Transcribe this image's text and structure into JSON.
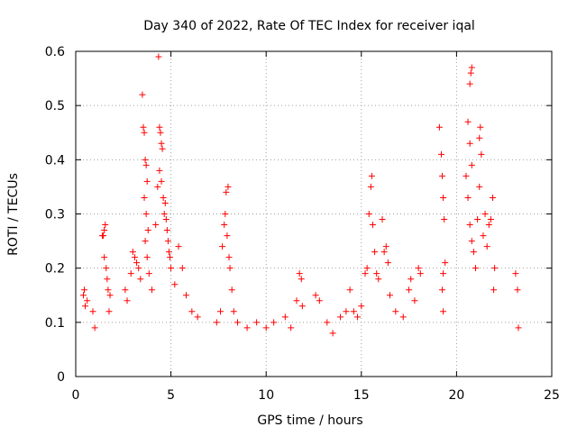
{
  "chart_data": {
    "type": "scatter",
    "title": "Day 340 of 2022, Rate Of TEC Index for receiver iqal",
    "xlabel": "GPS time / hours",
    "ylabel": "ROTI / TECUs",
    "xlim": [
      0,
      25
    ],
    "ylim": [
      0,
      0.6
    ],
    "xticks": [
      0,
      5,
      10,
      15,
      20,
      25
    ],
    "yticks": [
      0,
      0.1,
      0.2,
      0.3,
      0.4,
      0.5,
      0.6
    ],
    "xtick_labels": [
      "0",
      "5",
      "10",
      "15",
      "20",
      "25"
    ],
    "ytick_labels": [
      "0",
      "0.1",
      "0.2",
      "0.3",
      "0.4",
      "0.5",
      "0.6"
    ],
    "grid": true,
    "marker": "+",
    "marker_color": "#ff0000",
    "series": [
      {
        "points": [
          [
            0.4,
            0.15
          ],
          [
            0.45,
            0.16
          ],
          [
            0.5,
            0.13
          ],
          [
            0.6,
            0.14
          ],
          [
            0.9,
            0.12
          ],
          [
            1.0,
            0.09
          ],
          [
            1.4,
            0.26
          ],
          [
            1.45,
            0.26
          ],
          [
            1.5,
            0.27
          ],
          [
            1.55,
            0.28
          ],
          [
            1.5,
            0.22
          ],
          [
            1.6,
            0.2
          ],
          [
            1.7,
            0.16
          ],
          [
            1.8,
            0.15
          ],
          [
            1.65,
            0.18
          ],
          [
            1.75,
            0.12
          ],
          [
            2.6,
            0.16
          ],
          [
            2.7,
            0.14
          ],
          [
            2.9,
            0.19
          ],
          [
            3.0,
            0.23
          ],
          [
            3.1,
            0.22
          ],
          [
            3.2,
            0.21
          ],
          [
            3.3,
            0.2
          ],
          [
            3.4,
            0.18
          ],
          [
            3.5,
            0.52
          ],
          [
            3.55,
            0.46
          ],
          [
            3.6,
            0.45
          ],
          [
            3.65,
            0.4
          ],
          [
            3.7,
            0.39
          ],
          [
            3.75,
            0.36
          ],
          [
            3.6,
            0.33
          ],
          [
            3.7,
            0.3
          ],
          [
            3.8,
            0.27
          ],
          [
            3.65,
            0.25
          ],
          [
            3.75,
            0.22
          ],
          [
            3.85,
            0.19
          ],
          [
            4.0,
            0.16
          ],
          [
            4.2,
            0.28
          ],
          [
            4.3,
            0.35
          ],
          [
            4.35,
            0.59
          ],
          [
            4.4,
            0.46
          ],
          [
            4.45,
            0.45
          ],
          [
            4.5,
            0.43
          ],
          [
            4.55,
            0.42
          ],
          [
            4.4,
            0.38
          ],
          [
            4.5,
            0.36
          ],
          [
            4.6,
            0.33
          ],
          [
            4.7,
            0.32
          ],
          [
            4.65,
            0.3
          ],
          [
            4.75,
            0.29
          ],
          [
            4.8,
            0.27
          ],
          [
            4.85,
            0.25
          ],
          [
            4.9,
            0.23
          ],
          [
            4.95,
            0.22
          ],
          [
            5.0,
            0.2
          ],
          [
            5.2,
            0.17
          ],
          [
            5.4,
            0.24
          ],
          [
            5.6,
            0.2
          ],
          [
            5.8,
            0.15
          ],
          [
            6.1,
            0.12
          ],
          [
            6.4,
            0.11
          ],
          [
            7.4,
            0.1
          ],
          [
            7.6,
            0.12
          ],
          [
            7.7,
            0.24
          ],
          [
            7.8,
            0.28
          ],
          [
            7.9,
            0.34
          ],
          [
            8.0,
            0.35
          ],
          [
            7.85,
            0.3
          ],
          [
            7.95,
            0.26
          ],
          [
            8.05,
            0.22
          ],
          [
            8.1,
            0.2
          ],
          [
            8.2,
            0.16
          ],
          [
            8.3,
            0.12
          ],
          [
            8.5,
            0.1
          ],
          [
            9.0,
            0.09
          ],
          [
            9.5,
            0.1
          ],
          [
            10.0,
            0.09
          ],
          [
            10.4,
            0.1
          ],
          [
            11.0,
            0.11
          ],
          [
            11.3,
            0.09
          ],
          [
            11.6,
            0.14
          ],
          [
            11.75,
            0.19
          ],
          [
            11.85,
            0.18
          ],
          [
            11.9,
            0.13
          ],
          [
            12.6,
            0.15
          ],
          [
            12.8,
            0.14
          ],
          [
            13.2,
            0.1
          ],
          [
            13.5,
            0.08
          ],
          [
            13.9,
            0.11
          ],
          [
            14.2,
            0.12
          ],
          [
            14.4,
            0.16
          ],
          [
            14.6,
            0.12
          ],
          [
            14.8,
            0.11
          ],
          [
            15.0,
            0.13
          ],
          [
            15.2,
            0.19
          ],
          [
            15.3,
            0.2
          ],
          [
            15.4,
            0.3
          ],
          [
            15.5,
            0.35
          ],
          [
            15.55,
            0.37
          ],
          [
            15.6,
            0.28
          ],
          [
            15.7,
            0.23
          ],
          [
            15.8,
            0.19
          ],
          [
            15.9,
            0.18
          ],
          [
            16.1,
            0.29
          ],
          [
            16.2,
            0.23
          ],
          [
            16.3,
            0.24
          ],
          [
            16.4,
            0.21
          ],
          [
            16.5,
            0.15
          ],
          [
            16.8,
            0.12
          ],
          [
            17.2,
            0.11
          ],
          [
            17.5,
            0.16
          ],
          [
            17.6,
            0.18
          ],
          [
            17.8,
            0.14
          ],
          [
            18.0,
            0.2
          ],
          [
            18.1,
            0.19
          ],
          [
            19.1,
            0.46
          ],
          [
            19.2,
            0.41
          ],
          [
            19.25,
            0.37
          ],
          [
            19.3,
            0.33
          ],
          [
            19.35,
            0.29
          ],
          [
            19.4,
            0.21
          ],
          [
            19.3,
            0.19
          ],
          [
            19.25,
            0.16
          ],
          [
            19.3,
            0.12
          ],
          [
            20.5,
            0.37
          ],
          [
            20.6,
            0.47
          ],
          [
            20.7,
            0.54
          ],
          [
            20.75,
            0.56
          ],
          [
            20.8,
            0.57
          ],
          [
            20.7,
            0.43
          ],
          [
            20.8,
            0.39
          ],
          [
            20.6,
            0.33
          ],
          [
            20.7,
            0.28
          ],
          [
            20.8,
            0.25
          ],
          [
            20.9,
            0.23
          ],
          [
            21.0,
            0.2
          ],
          [
            21.1,
            0.29
          ],
          [
            21.2,
            0.44
          ],
          [
            21.25,
            0.46
          ],
          [
            21.3,
            0.41
          ],
          [
            21.2,
            0.35
          ],
          [
            21.4,
            0.26
          ],
          [
            21.5,
            0.3
          ],
          [
            21.6,
            0.24
          ],
          [
            21.7,
            0.28
          ],
          [
            21.8,
            0.29
          ],
          [
            21.9,
            0.33
          ],
          [
            22.0,
            0.2
          ],
          [
            21.95,
            0.16
          ],
          [
            23.1,
            0.19
          ],
          [
            23.2,
            0.16
          ],
          [
            23.25,
            0.09
          ]
        ]
      }
    ]
  }
}
